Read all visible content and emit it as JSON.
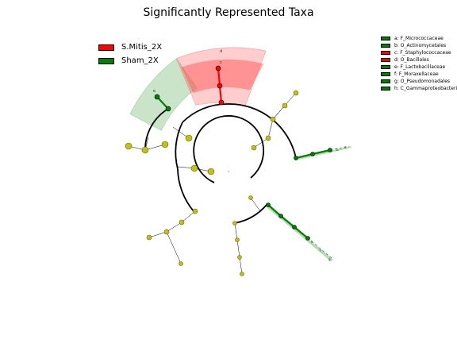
{
  "title": "Significantly Represented Taxa",
  "colors": {
    "group_a": "#ff0000",
    "group_b": "#008000",
    "neutral": "#bfbf1f",
    "highlight_a": "#ff4d4d",
    "highlight_b": "#66b266"
  },
  "groups": [
    {
      "name": "S.Mitis_2X",
      "color": "#ff0000"
    },
    {
      "name": "Sham_2X",
      "color": "#008000"
    }
  ],
  "taxa": [
    {
      "label": "a: F_Micrococcaceae",
      "color": "#008000"
    },
    {
      "label": "b: O_Actinomycetales",
      "color": "#008000"
    },
    {
      "label": "c: F_Staphylococcaceae",
      "color": "#ff0000"
    },
    {
      "label": "d: O_Bacillales",
      "color": "#ff0000"
    },
    {
      "label": "e: F_Lactobacillaceae",
      "color": "#008000"
    },
    {
      "label": "f: F_Moraxellaceae",
      "color": "#008000"
    },
    {
      "label": "g: O_Pseudomonadales",
      "color": "#008000"
    },
    {
      "label": "h: C_Gammaproteobacteria",
      "color": "#008000"
    }
  ],
  "clade_labels": {
    "a": "a",
    "b": "b",
    "c": "c",
    "d": "d",
    "e": "e",
    "f": "f",
    "g": "g",
    "h": "h"
  }
}
